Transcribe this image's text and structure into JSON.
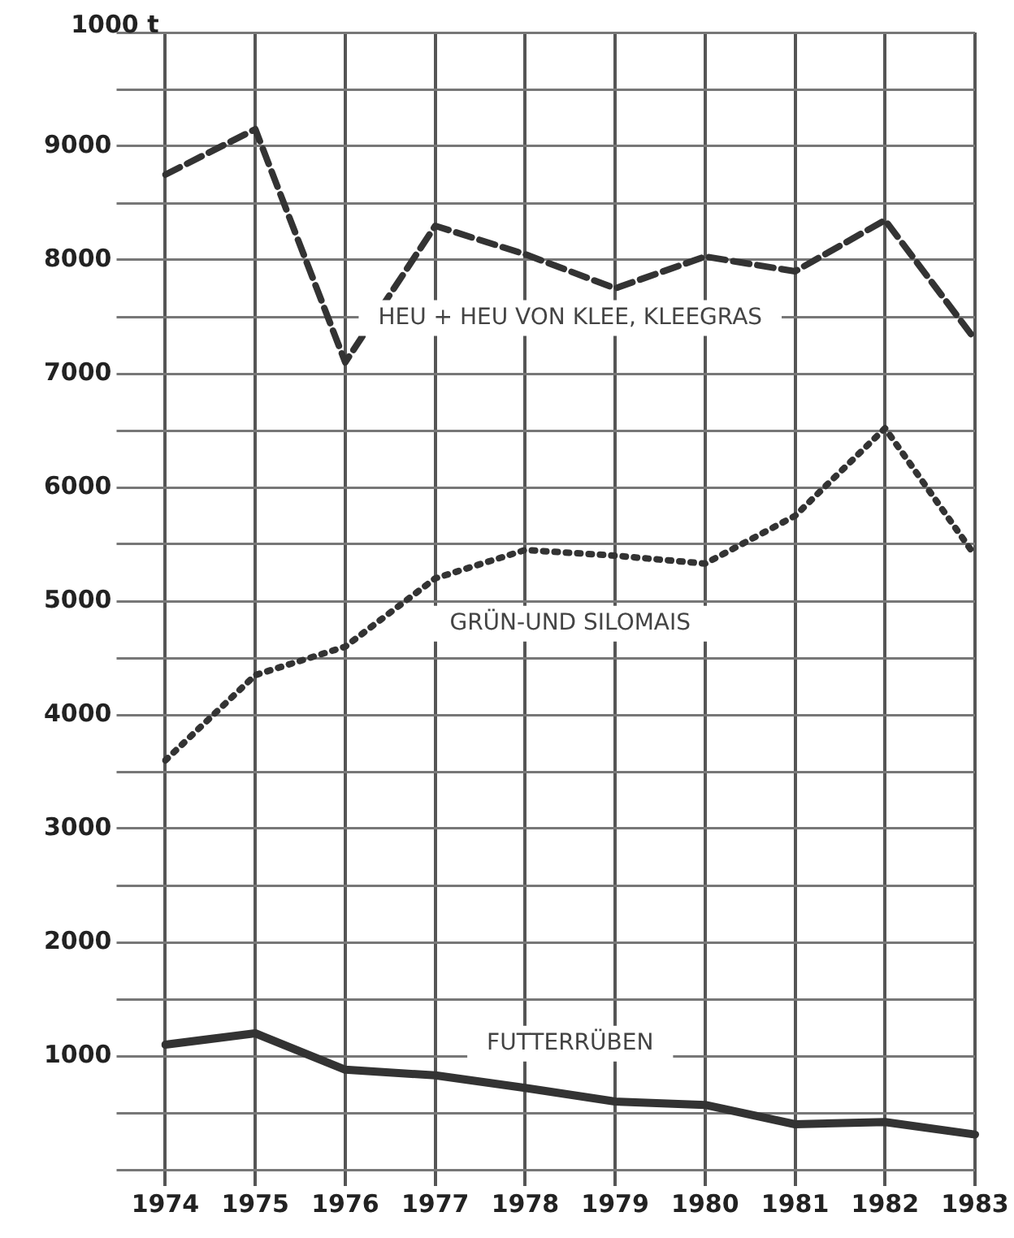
{
  "chart_data": {
    "type": "line",
    "categories": [
      "1974",
      "1975",
      "1976",
      "1977",
      "1978",
      "1979",
      "1980",
      "1981",
      "1982",
      "1983"
    ],
    "series": [
      {
        "name": "HEU + HEU VON KLEE, KLEEGRAS",
        "color": "#333333",
        "line_style": "dashed",
        "values": [
          8750,
          9150,
          7100,
          8300,
          8050,
          7750,
          8030,
          7900,
          8350,
          7300
        ]
      },
      {
        "name": "GRÜN-UND SILOMAIS",
        "color": "#333333",
        "line_style": "dotted",
        "values": [
          3600,
          4350,
          4600,
          5200,
          5450,
          5400,
          5330,
          5750,
          6520,
          5400
        ]
      },
      {
        "name": "FUTTERRÜBEN",
        "color": "#333333",
        "line_style": "solid",
        "values": [
          1100,
          1200,
          880,
          830,
          720,
          600,
          570,
          400,
          420,
          310
        ]
      }
    ],
    "ylim": [
      0,
      10000
    ],
    "yticks": [
      {
        "value": 0,
        "label": null
      },
      {
        "value": 500,
        "label": null
      },
      1000,
      {
        "value": 1500,
        "label": null
      },
      2000,
      {
        "value": 2500,
        "label": null
      },
      3000,
      {
        "value": 3500,
        "label": null
      },
      4000,
      {
        "value": 4500,
        "label": null
      },
      5000,
      {
        "value": 5500,
        "label": null
      },
      6000,
      {
        "value": 6500,
        "label": null
      },
      7000,
      {
        "value": 7500,
        "label": null
      },
      8000,
      {
        "value": 8500,
        "label": null
      },
      9000,
      {
        "value": 9500,
        "label": null
      },
      {
        "value": 10000,
        "label": null
      }
    ],
    "ylabel": "1000 t",
    "grid": true,
    "legend": false,
    "marker": "none"
  }
}
